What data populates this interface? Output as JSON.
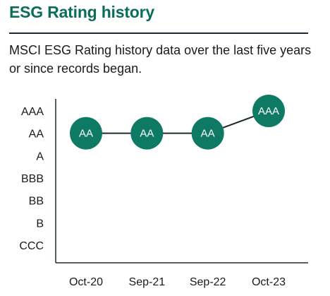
{
  "header": {
    "title": "ESG Rating history",
    "subtitle": "MSCI ESG Rating history data over the last five years or since records began."
  },
  "colors": {
    "accent": "#0b6e5a",
    "marker": "#0e7a63",
    "line": "#1e2a30",
    "text": "#1a1a1a"
  },
  "chart_data": {
    "type": "line",
    "title": "",
    "xlabel": "",
    "ylabel": "",
    "y_categories": [
      "CCC",
      "B",
      "BB",
      "BBB",
      "A",
      "AA",
      "AAA"
    ],
    "categories": [
      "Oct-20",
      "Sep-21",
      "Sep-22",
      "Oct-23"
    ],
    "series": [
      {
        "values": [
          "AA",
          "AA",
          "AA",
          "AAA"
        ],
        "labels": [
          "AA",
          "AA",
          "AA",
          "AAA"
        ]
      }
    ],
    "grid": false,
    "legend": "none"
  }
}
